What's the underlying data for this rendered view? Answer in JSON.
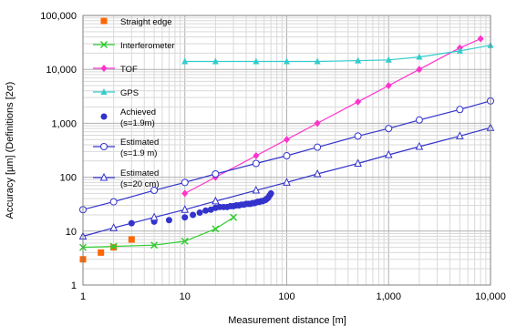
{
  "chart_data": {
    "type": "line",
    "title": "",
    "xlabel": "Measurement distance [m]",
    "ylabel": "Accuracy [µm] (Definitions [2σ)",
    "x_scale": "log",
    "y_scale": "log",
    "xlim": [
      1,
      10000
    ],
    "ylim": [
      1,
      100000
    ],
    "x_ticks": [
      1,
      10,
      100,
      1000,
      10000
    ],
    "x_tick_labels": [
      "1",
      "10",
      "100",
      "1,000",
      "10,000"
    ],
    "y_ticks": [
      1,
      10,
      100,
      1000,
      10000,
      100000
    ],
    "y_tick_labels": [
      "1",
      "10",
      "100",
      "1,000",
      "10,000",
      "100,000"
    ],
    "grid": true,
    "legend_position": "top-left",
    "series": [
      {
        "name": "Straight edge",
        "color": "#ff6600",
        "marker": "square-filled",
        "line": false,
        "x": [
          1,
          1.5,
          2,
          3
        ],
        "y": [
          3,
          4,
          5,
          7
        ]
      },
      {
        "name": "Interferometer",
        "color": "#33cc33",
        "marker": "x",
        "line": true,
        "x": [
          1,
          2,
          5,
          10,
          20,
          30
        ],
        "y": [
          5,
          5.2,
          5.5,
          6.5,
          11,
          18
        ]
      },
      {
        "name": "TOF",
        "color": "#ff33cc",
        "marker": "diamond-filled",
        "line": true,
        "x": [
          10,
          20,
          50,
          100,
          200,
          500,
          1000,
          2000,
          5000,
          8000
        ],
        "y": [
          50,
          100,
          250,
          500,
          1000,
          2500,
          5000,
          10000,
          25000,
          37000
        ]
      },
      {
        "name": "GPS",
        "color": "#33cccc",
        "marker": "triangle-filled",
        "line": true,
        "x": [
          10,
          20,
          50,
          100,
          200,
          500,
          1000,
          2000,
          5000,
          10000
        ],
        "y": [
          14000,
          14000,
          14000,
          14000,
          14000,
          14500,
          15000,
          17000,
          22000,
          28000
        ]
      },
      {
        "name": "Achieved\n(s=1.9m)",
        "color": "#3333cc",
        "marker": "circle-filled",
        "line": false,
        "x": [
          3,
          5,
          7,
          10,
          12,
          14,
          16,
          18,
          20,
          22,
          24,
          26,
          28,
          30,
          32,
          34,
          36,
          38,
          40,
          42,
          44,
          46,
          48,
          50,
          52,
          54,
          56,
          58,
          60,
          62,
          64,
          66,
          68,
          70
        ],
        "y": [
          14,
          15,
          16,
          18,
          20,
          22,
          24,
          25,
          27,
          28,
          28,
          28,
          29,
          29,
          30,
          30,
          31,
          31,
          32,
          32,
          32,
          33,
          33,
          34,
          35,
          35,
          36,
          36,
          37,
          38,
          40,
          42,
          46,
          50
        ]
      },
      {
        "name": "Estimated\n(s=1.9 m)",
        "color": "#3333cc",
        "marker": "circle-open",
        "line": true,
        "x": [
          1,
          2,
          5,
          10,
          20,
          50,
          100,
          200,
          500,
          1000,
          2000,
          5000,
          10000
        ],
        "y": [
          25,
          35,
          57,
          80,
          115,
          180,
          250,
          360,
          580,
          800,
          1150,
          1800,
          2600
        ]
      },
      {
        "name": "Estimated\n(s=20 cm)",
        "color": "#3333cc",
        "marker": "triangle-open",
        "line": true,
        "x": [
          1,
          2,
          5,
          10,
          20,
          50,
          100,
          200,
          500,
          1000,
          2000,
          5000,
          10000
        ],
        "y": [
          8,
          11.5,
          18,
          25,
          36,
          57,
          80,
          115,
          180,
          260,
          370,
          580,
          830
        ]
      }
    ]
  }
}
